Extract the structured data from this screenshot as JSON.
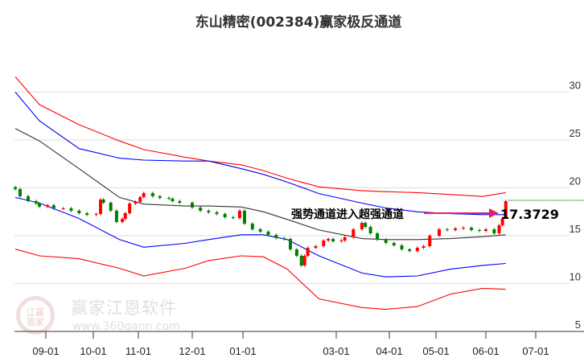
{
  "title": "东山精密(002384)赢家极反通道",
  "watermark": {
    "logo_text": "江赢恩家",
    "name": "赢家江恩软件",
    "url": "www.360gann.com"
  },
  "annotation": {
    "text": "强势通道进入超强通道",
    "value_label": "17.3729",
    "arrow_color": "#e0206a"
  },
  "colors": {
    "up": "#ff0000",
    "down": "#008000",
    "outer_band": "#ff0000",
    "inner_band": "#0000ff",
    "middle_band": "#333333",
    "reference_line": "#009900",
    "grid": "#dddddd"
  },
  "chart_data": {
    "type": "candlestick",
    "title": "东山精密(002384)赢家极反通道",
    "ylim": [
      5,
      32
    ],
    "y_ticks": [
      5,
      10,
      15,
      20,
      25,
      30
    ],
    "x_ticks": [
      "09-01",
      "10-01",
      "11-01",
      "12-01",
      "01-01",
      "03-01",
      "04-01",
      "05-01",
      "06-01",
      "07-01"
    ],
    "grid": true,
    "y_axis_position": "right",
    "reference_line": {
      "value": 18.7,
      "style": "dotted",
      "from": "06-13"
    },
    "candles": {
      "dates": [
        "08-13",
        "08-16",
        "08-21",
        "08-26",
        "08-28",
        "09-02",
        "09-06",
        "09-12",
        "09-17",
        "09-22",
        "09-27",
        "10-03",
        "10-06",
        "10-08",
        "10-13",
        "10-17",
        "10-21",
        "10-23",
        "10-26",
        "10-30",
        "11-02",
        "11-04",
        "11-09",
        "11-13",
        "11-18",
        "11-20",
        "11-24",
        "12-01",
        "12-06",
        "12-11",
        "12-16",
        "12-21",
        "12-26",
        "12-30",
        "01-02",
        "01-07",
        "01-12",
        "01-17",
        "01-22",
        "01-27",
        "01-31",
        "02-04",
        "02-07",
        "02-09",
        "02-11",
        "02-16",
        "02-21",
        "02-24",
        "02-27",
        "03-04",
        "03-06",
        "03-11",
        "03-16",
        "03-18",
        "03-21",
        "03-25",
        "03-30",
        "04-04",
        "04-09",
        "04-14",
        "04-19",
        "04-23",
        "04-27",
        "05-03",
        "05-08",
        "05-13",
        "05-18",
        "05-23",
        "05-28",
        "06-01",
        "06-06",
        "06-09",
        "06-11",
        "06-13"
      ],
      "close": [
        19.87,
        19.12,
        18.61,
        18.36,
        18.03,
        18.19,
        17.86,
        17.86,
        17.61,
        17.35,
        17.18,
        17.27,
        18.78,
        18.45,
        17.61,
        16.43,
        16.76,
        17.35,
        18.36,
        18.53,
        19.03,
        19.45,
        19.12,
        18.95,
        18.87,
        18.61,
        18.45,
        17.94,
        17.61,
        17.44,
        17.27,
        16.93,
        16.85,
        17.61,
        16.26,
        15.67,
        15.42,
        15.08,
        14.75,
        14.66,
        13.57,
        12.9,
        11.89,
        12.9,
        13.74,
        13.91,
        14.5,
        14.66,
        14.41,
        14.5,
        14.83,
        15.67,
        16.34,
        15.92,
        15.25,
        14.58,
        14.24,
        13.99,
        13.57,
        13.4,
        13.74,
        13.91,
        15.0,
        15.67,
        15.59,
        15.76,
        15.84,
        15.59,
        15.5,
        15.67,
        15.25,
        16.09,
        16.76,
        18.61
      ]
    },
    "bands": {
      "dates": [
        "08-13",
        "08-28",
        "09-22",
        "10-19",
        "11-04",
        "11-27",
        "12-11",
        "12-31",
        "01-14",
        "01-29",
        "02-18",
        "03-16",
        "03-30",
        "04-19",
        "05-10",
        "05-30",
        "06-13"
      ],
      "upper_outer": [
        31.6,
        28.7,
        26.6,
        24.9,
        24.0,
        23.2,
        22.8,
        22.4,
        21.8,
        21.0,
        20.1,
        19.7,
        19.6,
        19.5,
        19.3,
        19.1,
        19.5
      ],
      "upper_inner": [
        30.0,
        27.0,
        24.1,
        23.1,
        22.9,
        22.8,
        22.8,
        22.0,
        21.4,
        20.6,
        19.4,
        18.4,
        17.9,
        17.5,
        17.3,
        17.2,
        17.2
      ],
      "middle": [
        26.2,
        24.9,
        22.0,
        19.0,
        18.3,
        18.1,
        18.1,
        18.0,
        17.5,
        16.7,
        15.6,
        14.7,
        14.6,
        14.6,
        14.7,
        14.9,
        15.1
      ],
      "lower_inner": [
        19.0,
        18.4,
        16.8,
        14.6,
        13.8,
        14.2,
        14.6,
        15.1,
        15.1,
        14.6,
        12.9,
        11.1,
        10.7,
        10.8,
        11.5,
        11.9,
        12.1
      ],
      "lower_outer": [
        13.6,
        12.9,
        12.6,
        11.6,
        10.8,
        11.6,
        12.4,
        12.9,
        12.8,
        11.5,
        8.4,
        7.5,
        7.3,
        7.6,
        8.9,
        9.5,
        9.4
      ]
    }
  }
}
